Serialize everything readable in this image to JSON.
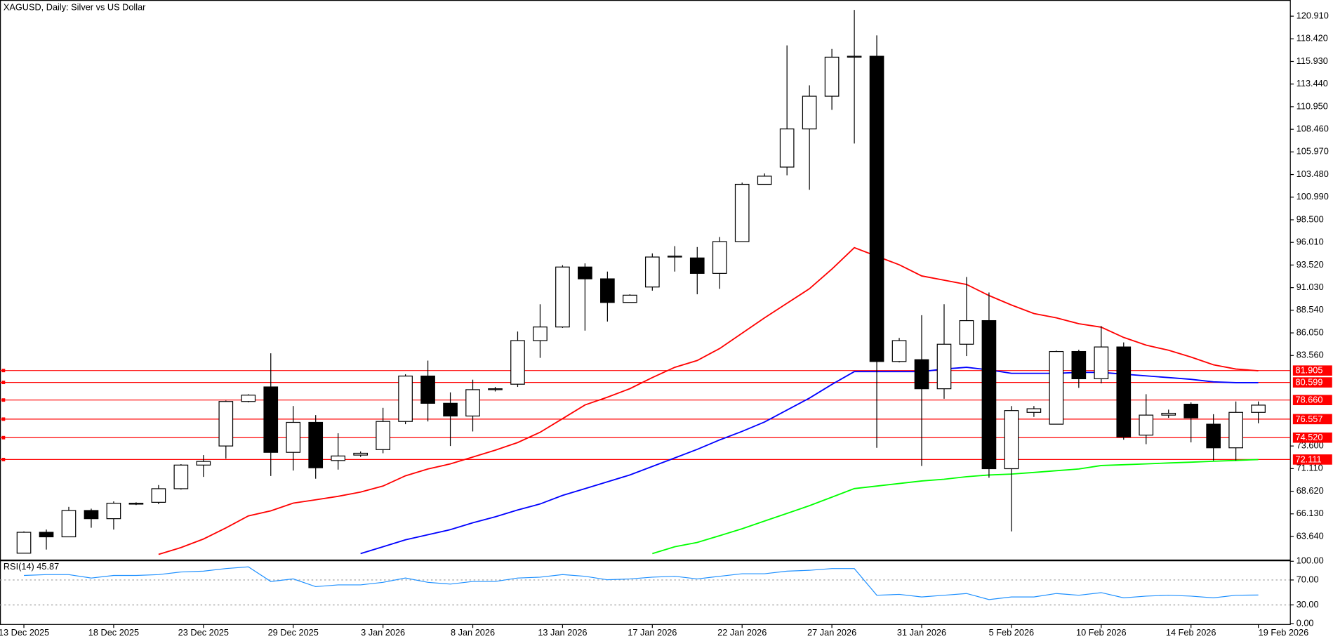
{
  "chart_data": [
    {
      "type": "candlestick",
      "title": "XAGUSD, Daily:  Silver vs US Dollar",
      "categories": [
        "13 Dec 2025",
        null,
        null,
        null,
        "18 Dec 2025",
        null,
        null,
        null,
        "23 Dec 2025",
        null,
        null,
        null,
        "29 Dec 2025",
        null,
        null,
        null,
        "3 Jan 2026",
        null,
        null,
        null,
        "8 Jan 2026",
        null,
        null,
        null,
        "13 Jan 2026",
        null,
        null,
        null,
        "17 Jan 2026",
        null,
        null,
        null,
        "22 Jan 2026",
        null,
        null,
        null,
        "27 Jan 2026",
        null,
        null,
        null,
        "31 Jan 2026",
        null,
        null,
        null,
        "5 Feb 2026",
        null,
        null,
        null,
        "10 Feb 2026",
        null,
        null,
        null,
        "14 Feb 2026",
        null,
        null,
        "19 Feb 2026"
      ],
      "open": [
        61.8,
        64.1,
        63.6,
        66.5,
        65.6,
        67.2,
        67.4,
        68.9,
        71.5,
        73.6,
        78.5,
        80.1,
        72.9,
        76.2,
        72.0,
        72.6,
        73.2,
        76.3,
        81.3,
        78.3,
        76.9,
        79.8,
        80.4,
        85.2,
        86.7,
        93.3,
        92.0,
        89.4,
        91.1,
        94.4,
        94.3,
        92.6,
        96.1,
        102.4,
        104.3,
        108.5,
        112.1,
        116.4,
        116.5,
        82.9,
        83.1,
        79.9,
        84.8,
        87.4,
        71.1,
        77.3,
        76.0,
        84.0,
        81.0,
        84.5,
        74.8,
        77.0,
        78.2,
        76.0,
        73.4,
        77.3
      ],
      "high": [
        64.2,
        64.4,
        66.9,
        66.7,
        67.5,
        67.4,
        69.3,
        71.6,
        72.6,
        78.6,
        79.3,
        83.8,
        78.0,
        77.0,
        75.0,
        73.0,
        77.8,
        81.5,
        83.0,
        79.5,
        80.9,
        80.1,
        86.2,
        89.2,
        93.5,
        93.7,
        92.8,
        90.3,
        94.8,
        95.6,
        95.5,
        96.6,
        102.6,
        103.6,
        117.7,
        113.3,
        117.3,
        121.6,
        118.8,
        85.5,
        88.0,
        89.2,
        92.2,
        90.5,
        78.0,
        78.0,
        84.1,
        84.2,
        86.8,
        85.0,
        79.3,
        77.6,
        78.4,
        77.1,
        78.5,
        78.5
      ],
      "low": [
        61.8,
        62.2,
        63.6,
        64.6,
        64.4,
        67.1,
        67.2,
        68.8,
        70.2,
        72.2,
        78.4,
        70.3,
        70.9,
        70.0,
        71.0,
        72.4,
        72.8,
        76.0,
        76.3,
        73.6,
        75.2,
        79.6,
        80.1,
        83.3,
        86.6,
        86.3,
        87.3,
        89.4,
        90.7,
        92.8,
        90.3,
        90.9,
        96.1,
        102.4,
        103.4,
        101.8,
        110.6,
        106.9,
        73.4,
        82.8,
        71.4,
        78.8,
        83.5,
        70.1,
        64.2,
        76.8,
        76.0,
        80.0,
        80.5,
        74.3,
        73.8,
        76.7,
        74.0,
        72.0,
        72.0,
        76.1
      ],
      "close": [
        64.1,
        63.6,
        66.5,
        65.6,
        67.3,
        67.3,
        68.9,
        71.5,
        71.9,
        78.5,
        79.2,
        72.9,
        76.2,
        71.2,
        72.5,
        72.8,
        76.3,
        81.3,
        78.3,
        76.9,
        79.8,
        79.9,
        85.2,
        86.7,
        93.3,
        92.0,
        89.4,
        90.2,
        94.4,
        94.5,
        92.6,
        96.1,
        102.4,
        103.3,
        108.5,
        112.1,
        116.4,
        116.5,
        82.9,
        85.2,
        79.9,
        84.8,
        87.4,
        71.1,
        77.5,
        77.7,
        84.0,
        81.0,
        84.5,
        74.6,
        77.0,
        77.2,
        76.7,
        73.4,
        77.3,
        78.1
      ],
      "up_color": "#ffffff",
      "down_color": "#000000",
      "lines": [
        {
          "color": "#ff0000",
          "values": [
            null,
            null,
            null,
            null,
            null,
            null,
            61.67,
            62.42,
            63.36,
            64.58,
            65.9,
            66.46,
            67.31,
            67.68,
            68.06,
            68.53,
            69.19,
            70.32,
            71.07,
            71.63,
            72.38,
            73.14,
            73.98,
            75.11,
            76.61,
            78.12,
            78.97,
            79.91,
            81.13,
            82.26,
            83.01,
            84.33,
            86.02,
            87.71,
            89.31,
            90.91,
            93.07,
            95.43,
            94.49,
            93.55,
            92.32,
            91.85,
            91.38,
            90.16,
            89.12,
            88.18,
            87.71,
            87.06,
            86.68,
            85.55,
            84.7,
            84.14,
            83.39,
            82.54,
            82.07,
            81.88
          ]
        },
        {
          "color": "#0000ff",
          "values": [
            null,
            null,
            null,
            null,
            null,
            null,
            null,
            null,
            null,
            null,
            null,
            null,
            null,
            null,
            null,
            61.76,
            62.51,
            63.27,
            63.83,
            64.39,
            65.15,
            65.8,
            66.56,
            67.22,
            68.16,
            68.91,
            69.66,
            70.41,
            71.35,
            72.29,
            73.23,
            74.27,
            75.21,
            76.24,
            77.56,
            78.87,
            80.38,
            81.79,
            81.79,
            81.79,
            81.79,
            82.07,
            82.26,
            81.98,
            81.6,
            81.6,
            81.6,
            81.7,
            81.7,
            81.51,
            81.32,
            81.13,
            80.94,
            80.66,
            80.57,
            80.57
          ]
        },
        {
          "color": "#00ff00",
          "values": [
            null,
            null,
            null,
            null,
            null,
            null,
            null,
            null,
            null,
            null,
            null,
            null,
            null,
            null,
            null,
            null,
            null,
            null,
            null,
            null,
            null,
            null,
            null,
            null,
            null,
            null,
            null,
            null,
            61.76,
            62.51,
            62.98,
            63.73,
            64.49,
            65.34,
            66.18,
            67.03,
            67.97,
            68.91,
            69.19,
            69.47,
            69.75,
            69.94,
            70.22,
            70.41,
            70.51,
            70.69,
            70.88,
            71.07,
            71.45,
            71.54,
            71.63,
            71.73,
            71.82,
            71.92,
            72.01,
            72.11
          ]
        }
      ],
      "levels": [
        {
          "value": 81.905,
          "label": "81.905"
        },
        {
          "value": 80.599,
          "label": "80.599"
        },
        {
          "value": 78.66,
          "label": "78.660"
        },
        {
          "value": 76.557,
          "label": "76.557"
        },
        {
          "value": 74.52,
          "label": "74.520"
        },
        {
          "value": 72.111,
          "label": "72.111"
        }
      ],
      "level_color": "#ff0000",
      "ylim": [
        61.1,
        122.41
      ],
      "yticks": [
        {
          "value": 120.91,
          "label": "120.910"
        },
        {
          "value": 118.42,
          "label": "118.420"
        },
        {
          "value": 115.93,
          "label": "115.930"
        },
        {
          "value": 113.44,
          "label": "113.440"
        },
        {
          "value": 110.95,
          "label": "110.950"
        },
        {
          "value": 108.46,
          "label": "108.460"
        },
        {
          "value": 105.97,
          "label": "105.970"
        },
        {
          "value": 103.48,
          "label": "103.480"
        },
        {
          "value": 100.99,
          "label": "100.990"
        },
        {
          "value": 98.5,
          "label": "98.500"
        },
        {
          "value": 96.01,
          "label": "96.010"
        },
        {
          "value": 93.52,
          "label": "93.520"
        },
        {
          "value": 91.03,
          "label": "91.030"
        },
        {
          "value": 88.54,
          "label": "88.540"
        },
        {
          "value": 86.05,
          "label": "86.050"
        },
        {
          "value": 83.56,
          "label": "83.560"
        },
        {
          "value": 73.6,
          "label": "73.600"
        },
        {
          "value": 71.11,
          "label": "71.110"
        },
        {
          "value": 68.62,
          "label": "68.620"
        },
        {
          "value": 66.13,
          "label": "66.130"
        },
        {
          "value": 63.64,
          "label": "63.640"
        }
      ]
    },
    {
      "type": "line",
      "title": "RSI(14) 45.87",
      "color": "#1e90ff",
      "values": [
        77.2,
        78.6,
        78.6,
        73.1,
        77.2,
        77.2,
        78.6,
        82.8,
        84.1,
        88.3,
        91.0,
        67.6,
        71.7,
        59.3,
        62.1,
        62.1,
        66.2,
        73.1,
        66.2,
        63.4,
        67.6,
        67.6,
        73.1,
        74.5,
        78.6,
        75.9,
        70.3,
        71.7,
        74.5,
        75.9,
        71.7,
        75.9,
        80.0,
        80.0,
        84.1,
        85.5,
        88.3,
        88.3,
        45.5,
        46.9,
        42.8,
        45.5,
        48.3,
        38.6,
        42.8,
        42.8,
        48.3,
        45.5,
        49.7,
        41.4,
        44.1,
        45.5,
        44.1,
        41.4,
        45.5,
        45.87
      ],
      "ylim": [
        0,
        100
      ],
      "yticks": [
        {
          "value": 100,
          "label": "100.00"
        },
        {
          "value": 70,
          "label": "70.00"
        },
        {
          "value": 30,
          "label": "30.00"
        },
        {
          "value": 0,
          "label": "0.00"
        }
      ]
    }
  ]
}
